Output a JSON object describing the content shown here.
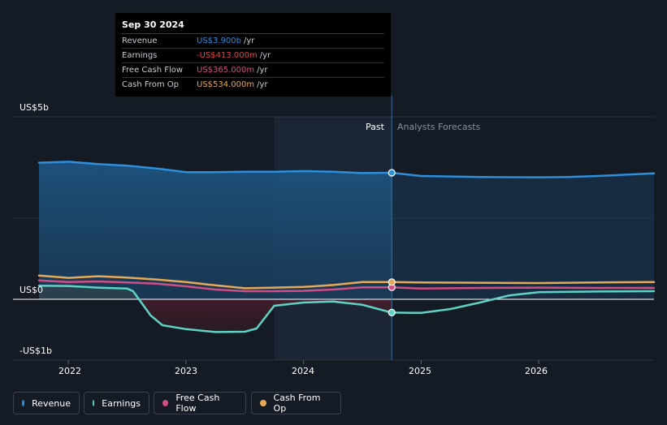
{
  "tooltip": {
    "date": "Sep 30 2024",
    "rows": [
      {
        "label": "Revenue",
        "value": "US$3.900b",
        "unit": "/yr",
        "color": "#2e8fdc"
      },
      {
        "label": "Earnings",
        "value": "-US$413.000m",
        "unit": "/yr",
        "color": "#e8414b"
      },
      {
        "label": "Free Cash Flow",
        "value": "US$365.000m",
        "unit": "/yr",
        "color": "#d14e84"
      },
      {
        "label": "Cash From Op",
        "value": "US$534.000m",
        "unit": "/yr",
        "color": "#e7a955"
      }
    ]
  },
  "regions": {
    "past": "Past",
    "forecast": "Analysts Forecasts"
  },
  "chart_data": {
    "type": "line",
    "y_tick_labels": [
      "US$5b",
      "US$0",
      "-US$1b"
    ],
    "x_tick_labels": [
      "2022",
      "2023",
      "2024",
      "2025",
      "2026"
    ],
    "xlim": [
      2021.75,
      2026.98
    ],
    "ylim": [
      -1.0,
      5.0
    ],
    "divider_x": 2024.75,
    "series": [
      {
        "name": "Revenue",
        "color": "#2e8fdc",
        "x": [
          2021.75,
          2022.0,
          2022.25,
          2022.5,
          2022.75,
          2023.0,
          2023.25,
          2023.5,
          2023.75,
          2024.0,
          2024.25,
          2024.5,
          2024.75,
          2025.0,
          2025.5,
          2026.0,
          2026.25,
          2026.5,
          2026.98
        ],
        "y": [
          4.21,
          4.24,
          4.17,
          4.12,
          4.03,
          3.92,
          3.92,
          3.93,
          3.93,
          3.95,
          3.93,
          3.89,
          3.9,
          3.8,
          3.77,
          3.76,
          3.77,
          3.8,
          3.88
        ]
      },
      {
        "name": "Earnings",
        "color": "#5fd3c3",
        "x": [
          2021.75,
          2022.0,
          2022.25,
          2022.5,
          2022.55,
          2022.7,
          2022.8,
          2023.0,
          2023.25,
          2023.5,
          2023.6,
          2023.75,
          2024.0,
          2024.25,
          2024.5,
          2024.75,
          2025.0,
          2025.25,
          2025.5,
          2025.75,
          2026.0,
          2026.5,
          2026.98
        ],
        "y": [
          0.42,
          0.41,
          0.36,
          0.33,
          0.25,
          -0.5,
          -0.8,
          -0.92,
          -1.01,
          -1.0,
          -0.9,
          -0.2,
          -0.1,
          -0.07,
          -0.17,
          -0.41,
          -0.42,
          -0.3,
          -0.1,
          0.12,
          0.22,
          0.24,
          0.25
        ]
      },
      {
        "name": "Free Cash Flow",
        "color": "#d14e84",
        "x": [
          2021.75,
          2022.0,
          2022.25,
          2022.5,
          2022.75,
          2023.0,
          2023.25,
          2023.5,
          2023.75,
          2024.0,
          2024.25,
          2024.5,
          2024.75,
          2025.0,
          2025.5,
          2026.0,
          2026.5,
          2026.98
        ],
        "y": [
          0.58,
          0.53,
          0.55,
          0.52,
          0.48,
          0.4,
          0.3,
          0.25,
          0.25,
          0.26,
          0.3,
          0.37,
          0.37,
          0.33,
          0.35,
          0.36,
          0.35,
          0.35
        ]
      },
      {
        "name": "Cash From Op",
        "color": "#e7a955",
        "x": [
          2021.75,
          2022.0,
          2022.25,
          2022.5,
          2022.75,
          2023.0,
          2023.25,
          2023.5,
          2023.75,
          2024.0,
          2024.25,
          2024.5,
          2024.75,
          2025.0,
          2025.5,
          2026.0,
          2026.5,
          2026.98
        ],
        "y": [
          0.73,
          0.66,
          0.71,
          0.67,
          0.61,
          0.53,
          0.43,
          0.34,
          0.36,
          0.38,
          0.44,
          0.53,
          0.53,
          0.52,
          0.51,
          0.5,
          0.52,
          0.53
        ]
      }
    ],
    "legend_position": "bottom-left"
  },
  "legend": [
    {
      "label": "Revenue",
      "color": "#2e8fdc"
    },
    {
      "label": "Earnings",
      "color": "#5fd3c3"
    },
    {
      "label": "Free Cash Flow",
      "color": "#d14e84"
    },
    {
      "label": "Cash From Op",
      "color": "#e7a955"
    }
  ]
}
